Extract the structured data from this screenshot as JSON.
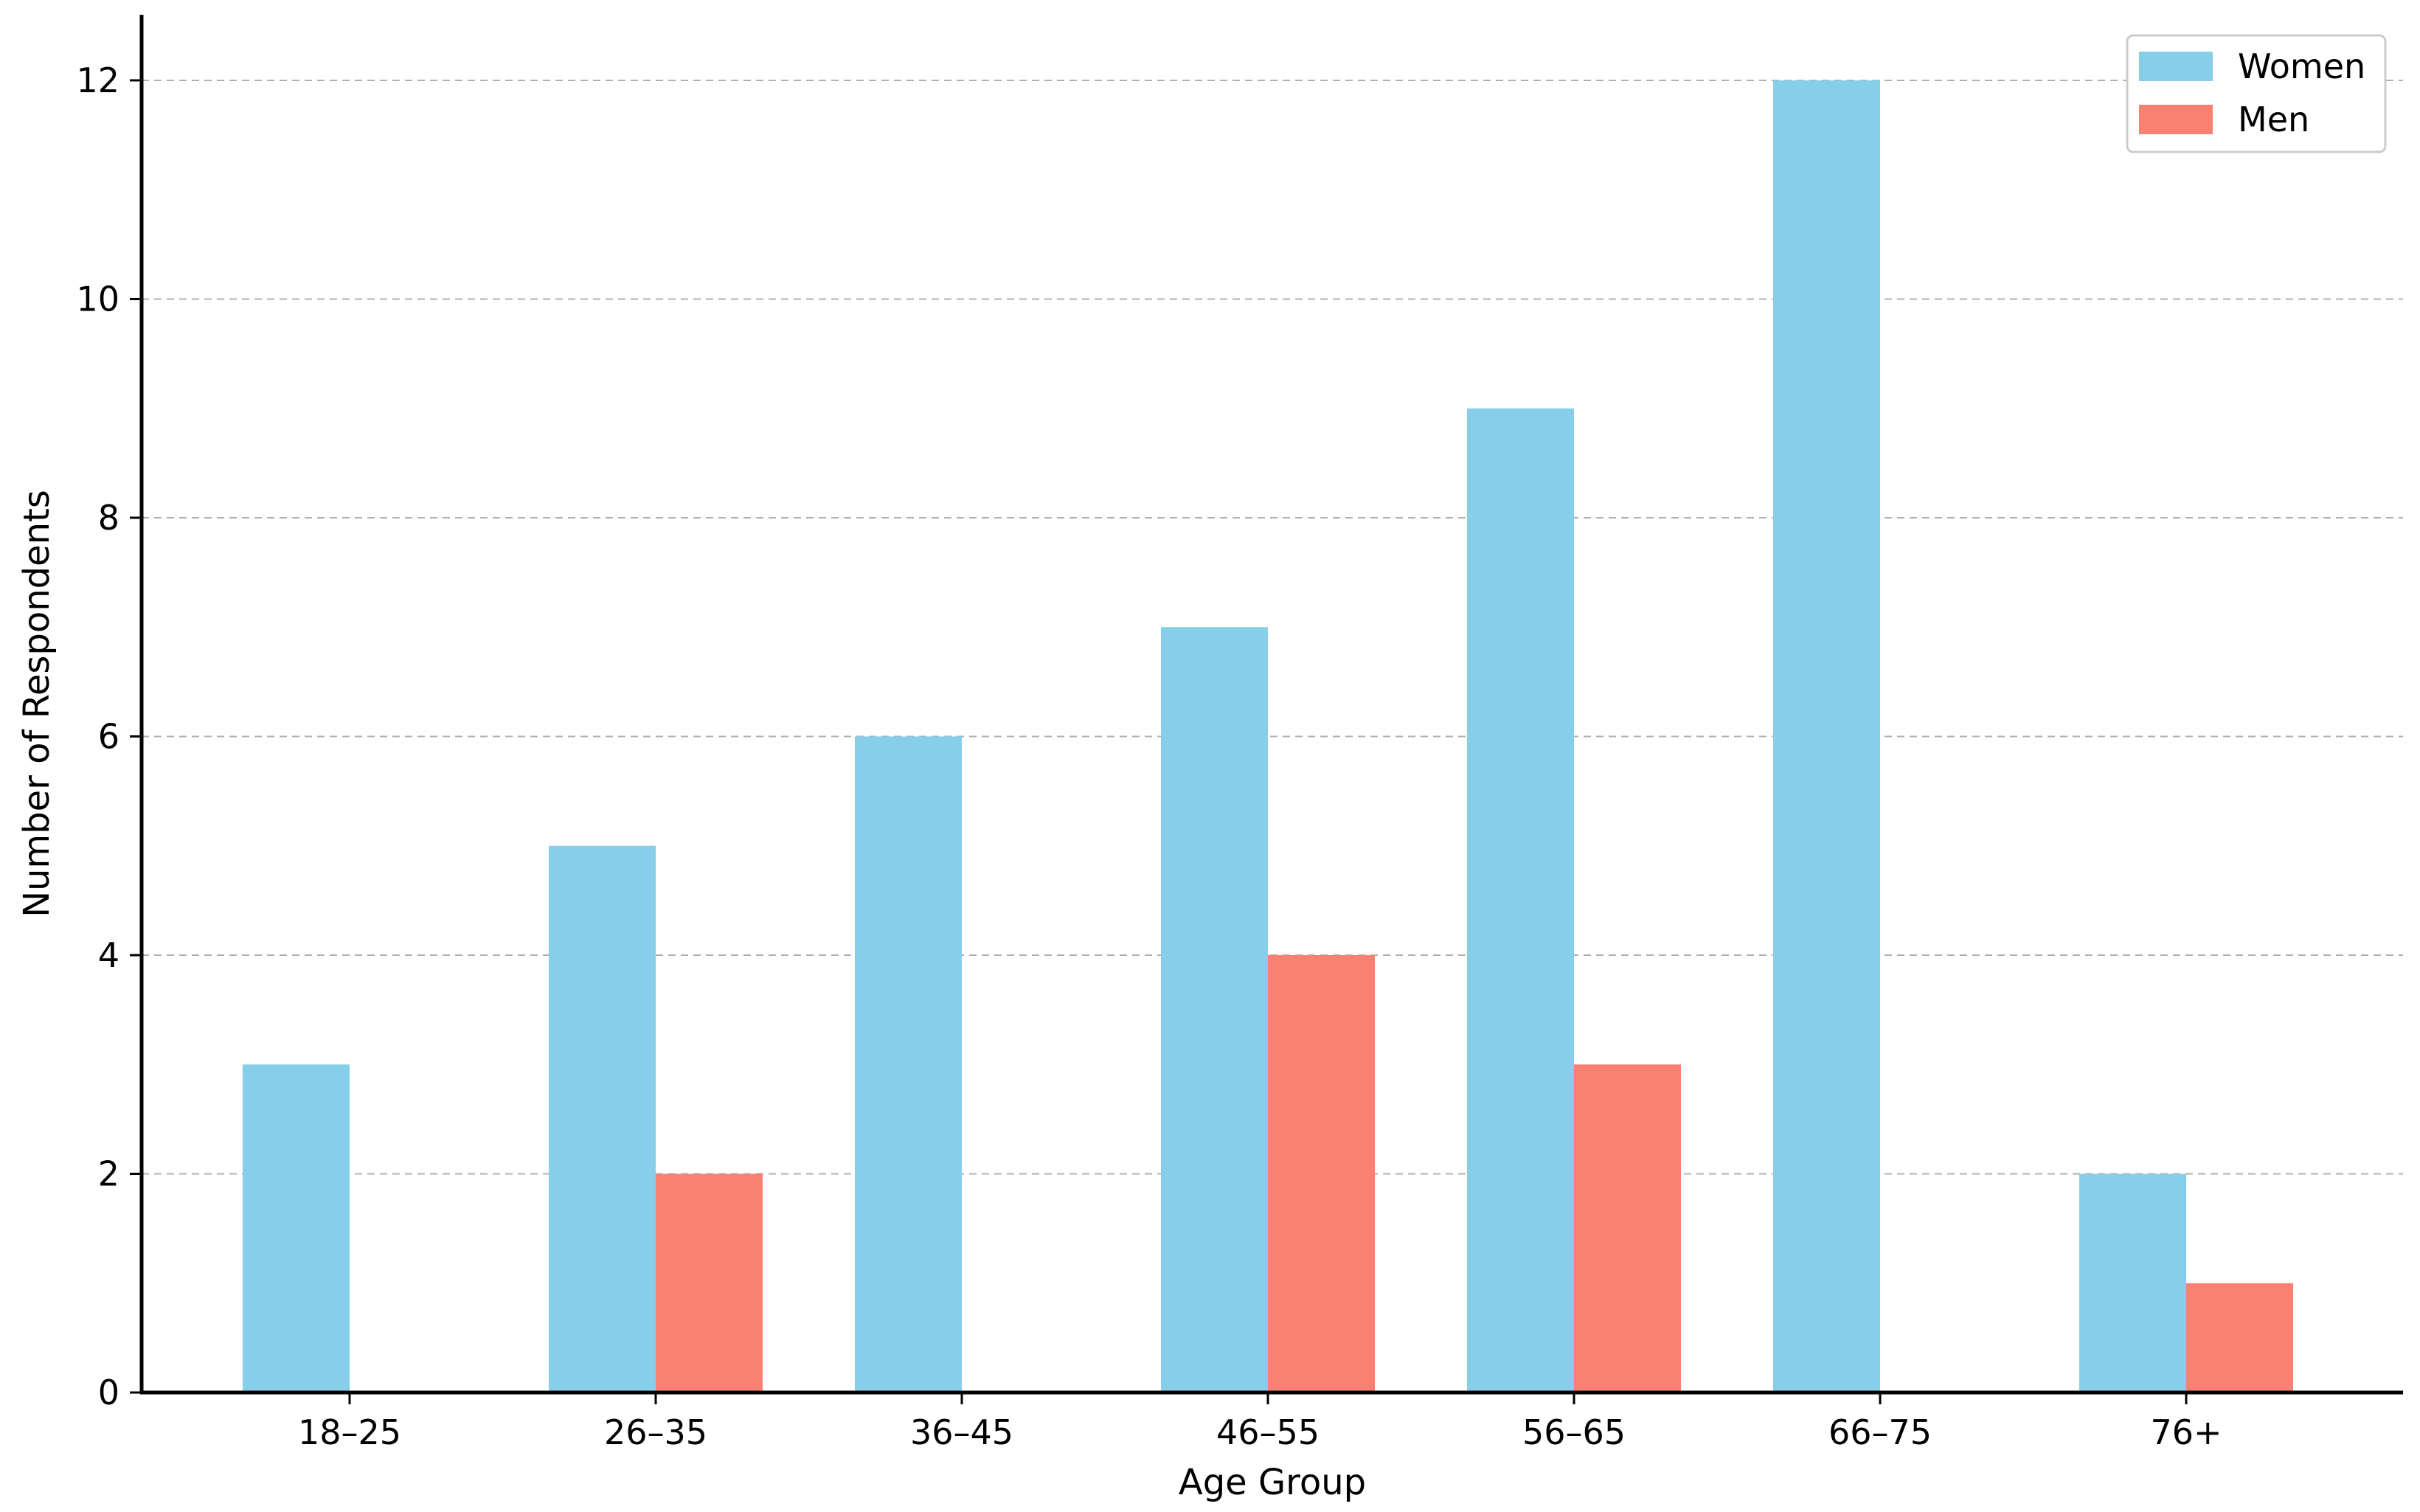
{
  "chart_data": {
    "type": "bar",
    "title": "",
    "xlabel": "Age Group",
    "ylabel": "Number of Respondents",
    "categories": [
      "18–25",
      "26–35",
      "36–45",
      "46–55",
      "56–65",
      "66–75",
      "76+"
    ],
    "series": [
      {
        "name": "Women",
        "values": [
          3,
          5,
          6,
          7,
          9,
          12,
          2
        ],
        "color": "#87CEEB"
      },
      {
        "name": "Men",
        "values": [
          0,
          2,
          0,
          4,
          3,
          0,
          1
        ],
        "color": "#FA8072"
      }
    ],
    "ylim": [
      0,
      12.6
    ],
    "yticks": [
      0,
      2,
      4,
      6,
      8,
      10,
      12
    ],
    "grid": "y-dashed",
    "legend_position": "top-right"
  }
}
